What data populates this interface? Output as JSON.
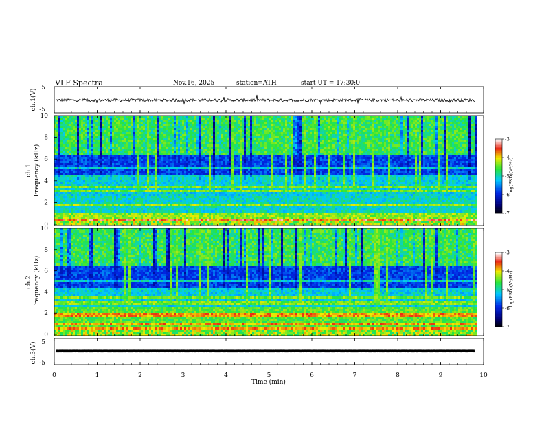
{
  "header": {
    "title": "VLF  Spectra",
    "date": "Nov.16, 2025",
    "station": "station=ATH",
    "start": "start  UT  =   17:30:0"
  },
  "chart_data": [
    {
      "type": "line",
      "name": "ch1-waveform",
      "ylabel": "ch.1(V)",
      "ylim": [
        -5,
        5
      ],
      "yticks": [
        "5",
        "-5"
      ],
      "xlim": [
        0,
        10
      ],
      "series": [
        {
          "name": "ch.1",
          "baseline": -0.2,
          "amplitude": 1.1
        }
      ]
    },
    {
      "type": "heatmap",
      "name": "ch1-spectrogram",
      "ylabel": "ch.1\nFrequency  (kHz)",
      "ylim": [
        0,
        10
      ],
      "yticks": [
        "0",
        "2",
        "4",
        "6",
        "8",
        "10"
      ],
      "xlim": [
        0,
        9.8
      ],
      "colorbar": {
        "label": "log(PSD)(V²/Hz)",
        "range": [
          -7,
          -3
        ],
        "ticks": [
          "-3",
          "-4",
          "-5",
          "-6",
          "-7"
        ]
      }
    },
    {
      "type": "heatmap",
      "name": "ch2-spectrogram",
      "ylabel": "ch.2\nFrequency  (kHz)",
      "ylim": [
        0,
        10
      ],
      "yticks": [
        "0",
        "2",
        "4",
        "6",
        "8",
        "10"
      ],
      "xlim": [
        0,
        9.8
      ],
      "colorbar": {
        "label": "log(PSD)(V²/Hz)",
        "range": [
          -7,
          -3
        ],
        "ticks": [
          "-3",
          "-4",
          "-5",
          "-6",
          "-7"
        ]
      }
    },
    {
      "type": "line",
      "name": "ch3-waveform",
      "ylabel": "ch.3(V)",
      "ylim": [
        -5,
        5
      ],
      "yticks": [
        "5",
        "-5"
      ],
      "xlim": [
        0,
        10
      ],
      "series": [
        {
          "name": "ch.3",
          "baseline": 0.2,
          "amplitude": 0.1
        }
      ]
    }
  ],
  "xaxis": {
    "label": "Time  (min)",
    "range": [
      0,
      10
    ],
    "ticks": [
      "0",
      "1",
      "2",
      "3",
      "4",
      "5",
      "6",
      "7",
      "8",
      "9",
      "10"
    ]
  }
}
